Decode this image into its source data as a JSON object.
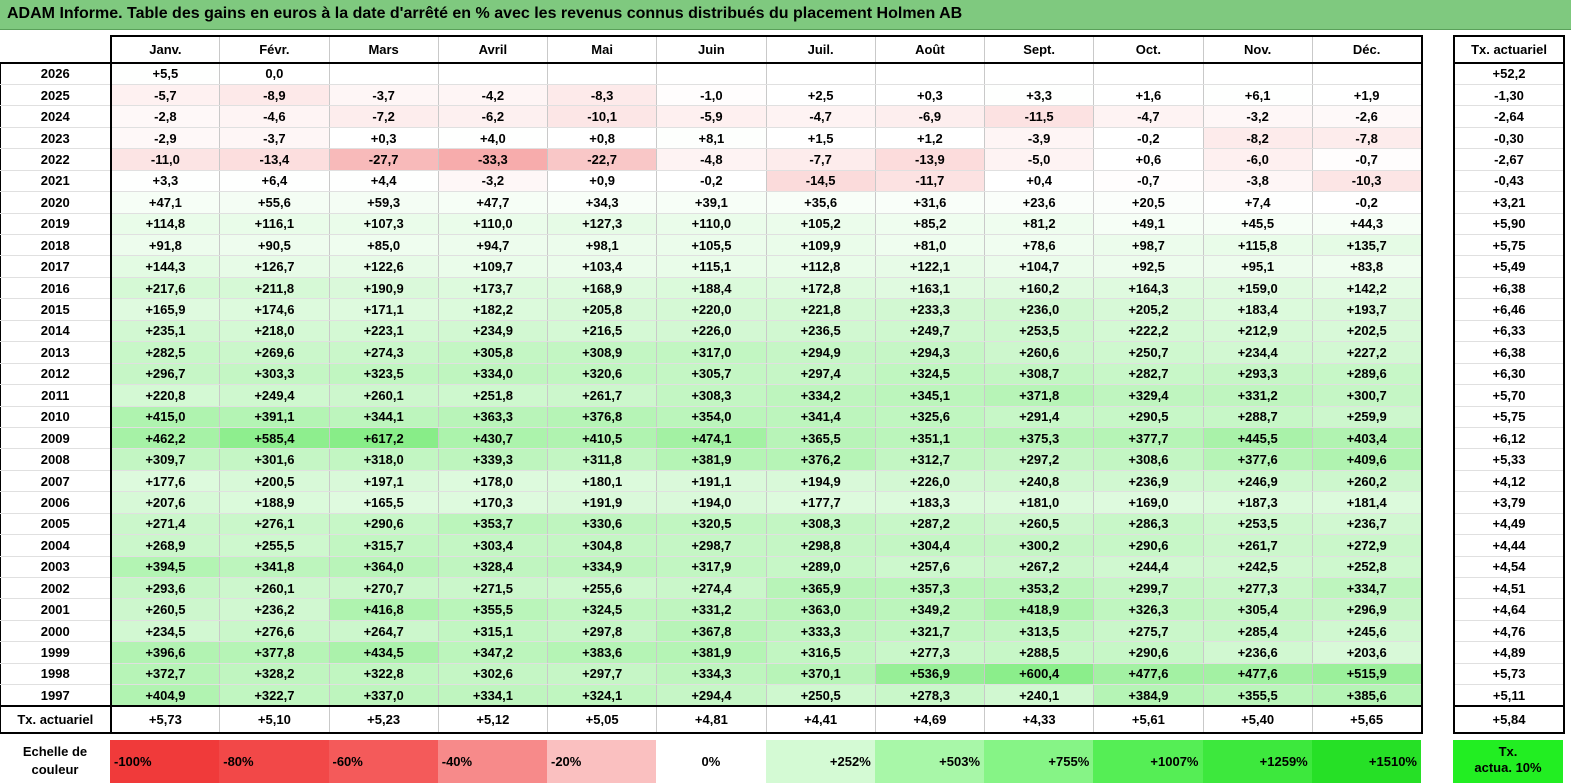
{
  "title": "ADAM Informe. Table des gains en euros à la date d'arrêté en % avec les revenus connus distribués du placement Holmen AB",
  "months": [
    "Janv.",
    "Févr.",
    "Mars",
    "Avril",
    "Mai",
    "Juin",
    "Juil.",
    "Août",
    "Sept.",
    "Oct.",
    "Nov.",
    "Déc."
  ],
  "actuarial_header": "Tx. actuariel",
  "rows": [
    {
      "year": "2026",
      "values": [
        "+5,5",
        "0,0",
        "",
        "",
        "",
        "",
        "",
        "",
        "",
        "",
        "",
        ""
      ],
      "act": "+52,2"
    },
    {
      "year": "2025",
      "values": [
        "-5,7",
        "-8,9",
        "-3,7",
        "-4,2",
        "-8,3",
        "-1,0",
        "+2,5",
        "+0,3",
        "+3,3",
        "+1,6",
        "+6,1",
        "+1,9"
      ],
      "act": "-1,30"
    },
    {
      "year": "2024",
      "values": [
        "-2,8",
        "-4,6",
        "-7,2",
        "-6,2",
        "-10,1",
        "-5,9",
        "-4,7",
        "-6,9",
        "-11,5",
        "-4,7",
        "-3,2",
        "-2,6"
      ],
      "act": "-2,64"
    },
    {
      "year": "2023",
      "values": [
        "-2,9",
        "-3,7",
        "+0,3",
        "+4,0",
        "+0,8",
        "+8,1",
        "+1,5",
        "+1,2",
        "-3,9",
        "-0,2",
        "-8,2",
        "-7,8"
      ],
      "act": "-0,30"
    },
    {
      "year": "2022",
      "values": [
        "-11,0",
        "-13,4",
        "-27,7",
        "-33,3",
        "-22,7",
        "-4,8",
        "-7,7",
        "-13,9",
        "-5,0",
        "+0,6",
        "-6,0",
        "-0,7"
      ],
      "act": "-2,67"
    },
    {
      "year": "2021",
      "values": [
        "+3,3",
        "+6,4",
        "+4,4",
        "-3,2",
        "+0,9",
        "-0,2",
        "-14,5",
        "-11,7",
        "+0,4",
        "-0,7",
        "-3,8",
        "-10,3"
      ],
      "act": "-0,43"
    },
    {
      "year": "2020",
      "values": [
        "+47,1",
        "+55,6",
        "+59,3",
        "+47,7",
        "+34,3",
        "+39,1",
        "+35,6",
        "+31,6",
        "+23,6",
        "+20,5",
        "+7,4",
        "-0,2"
      ],
      "act": "+3,21"
    },
    {
      "year": "2019",
      "values": [
        "+114,8",
        "+116,1",
        "+107,3",
        "+110,0",
        "+127,3",
        "+110,0",
        "+105,2",
        "+85,2",
        "+81,2",
        "+49,1",
        "+45,5",
        "+44,3"
      ],
      "act": "+5,90"
    },
    {
      "year": "2018",
      "values": [
        "+91,8",
        "+90,5",
        "+85,0",
        "+94,7",
        "+98,1",
        "+105,5",
        "+109,9",
        "+81,0",
        "+78,6",
        "+98,7",
        "+115,8",
        "+135,7"
      ],
      "act": "+5,75"
    },
    {
      "year": "2017",
      "values": [
        "+144,3",
        "+126,7",
        "+122,6",
        "+109,7",
        "+103,4",
        "+115,1",
        "+112,8",
        "+122,1",
        "+104,7",
        "+92,5",
        "+95,1",
        "+83,8"
      ],
      "act": "+5,49"
    },
    {
      "year": "2016",
      "values": [
        "+217,6",
        "+211,8",
        "+190,9",
        "+173,7",
        "+168,9",
        "+188,4",
        "+172,8",
        "+163,1",
        "+160,2",
        "+164,3",
        "+159,0",
        "+142,2"
      ],
      "act": "+6,38"
    },
    {
      "year": "2015",
      "values": [
        "+165,9",
        "+174,6",
        "+171,1",
        "+182,2",
        "+205,8",
        "+220,0",
        "+221,8",
        "+233,3",
        "+236,0",
        "+205,2",
        "+183,4",
        "+193,7"
      ],
      "act": "+6,46"
    },
    {
      "year": "2014",
      "values": [
        "+235,1",
        "+218,0",
        "+223,1",
        "+234,9",
        "+216,5",
        "+226,0",
        "+236,5",
        "+249,7",
        "+253,5",
        "+222,2",
        "+212,9",
        "+202,5"
      ],
      "act": "+6,33"
    },
    {
      "year": "2013",
      "values": [
        "+282,5",
        "+269,6",
        "+274,3",
        "+305,8",
        "+308,9",
        "+317,0",
        "+294,9",
        "+294,3",
        "+260,6",
        "+250,7",
        "+234,4",
        "+227,2"
      ],
      "act": "+6,38"
    },
    {
      "year": "2012",
      "values": [
        "+296,7",
        "+303,3",
        "+323,5",
        "+334,0",
        "+320,6",
        "+305,7",
        "+297,4",
        "+324,5",
        "+308,7",
        "+282,7",
        "+293,3",
        "+289,6"
      ],
      "act": "+6,30"
    },
    {
      "year": "2011",
      "values": [
        "+220,8",
        "+249,4",
        "+260,1",
        "+251,8",
        "+261,7",
        "+308,3",
        "+334,2",
        "+345,1",
        "+371,8",
        "+329,4",
        "+331,2",
        "+300,7"
      ],
      "act": "+5,70"
    },
    {
      "year": "2010",
      "values": [
        "+415,0",
        "+391,1",
        "+344,1",
        "+363,3",
        "+376,8",
        "+354,0",
        "+341,4",
        "+325,6",
        "+291,4",
        "+290,5",
        "+288,7",
        "+259,9"
      ],
      "act": "+5,75"
    },
    {
      "year": "2009",
      "values": [
        "+462,2",
        "+585,4",
        "+617,2",
        "+430,7",
        "+410,5",
        "+474,1",
        "+365,5",
        "+351,1",
        "+375,3",
        "+377,7",
        "+445,5",
        "+403,4"
      ],
      "act": "+6,12"
    },
    {
      "year": "2008",
      "values": [
        "+309,7",
        "+301,6",
        "+318,0",
        "+339,3",
        "+311,8",
        "+381,9",
        "+376,2",
        "+312,7",
        "+297,2",
        "+308,6",
        "+377,6",
        "+409,6"
      ],
      "act": "+5,33"
    },
    {
      "year": "2007",
      "values": [
        "+177,6",
        "+200,5",
        "+197,1",
        "+178,0",
        "+180,1",
        "+191,1",
        "+194,9",
        "+226,0",
        "+240,8",
        "+236,9",
        "+246,9",
        "+260,2"
      ],
      "act": "+4,12"
    },
    {
      "year": "2006",
      "values": [
        "+207,6",
        "+188,9",
        "+165,5",
        "+170,3",
        "+191,9",
        "+194,0",
        "+177,7",
        "+183,3",
        "+181,0",
        "+169,0",
        "+187,3",
        "+181,4"
      ],
      "act": "+3,79"
    },
    {
      "year": "2005",
      "values": [
        "+271,4",
        "+276,1",
        "+290,6",
        "+353,7",
        "+330,6",
        "+320,5",
        "+308,3",
        "+287,2",
        "+260,5",
        "+286,3",
        "+253,5",
        "+236,7"
      ],
      "act": "+4,49"
    },
    {
      "year": "2004",
      "values": [
        "+268,9",
        "+255,5",
        "+315,7",
        "+303,4",
        "+304,8",
        "+298,7",
        "+298,8",
        "+304,4",
        "+300,2",
        "+290,6",
        "+261,7",
        "+272,9"
      ],
      "act": "+4,44"
    },
    {
      "year": "2003",
      "values": [
        "+394,5",
        "+341,8",
        "+364,0",
        "+328,4",
        "+334,9",
        "+317,9",
        "+289,0",
        "+257,6",
        "+267,2",
        "+244,4",
        "+242,5",
        "+252,8"
      ],
      "act": "+4,54"
    },
    {
      "year": "2002",
      "values": [
        "+293,6",
        "+260,1",
        "+270,7",
        "+271,5",
        "+255,6",
        "+274,4",
        "+365,9",
        "+357,3",
        "+353,2",
        "+299,7",
        "+277,3",
        "+334,7"
      ],
      "act": "+4,51"
    },
    {
      "year": "2001",
      "values": [
        "+260,5",
        "+236,2",
        "+416,8",
        "+355,5",
        "+324,5",
        "+331,2",
        "+363,0",
        "+349,2",
        "+418,9",
        "+326,3",
        "+305,4",
        "+296,9"
      ],
      "act": "+4,64"
    },
    {
      "year": "2000",
      "values": [
        "+234,5",
        "+276,6",
        "+264,7",
        "+315,1",
        "+297,8",
        "+367,8",
        "+333,3",
        "+321,7",
        "+313,5",
        "+275,7",
        "+285,4",
        "+245,6"
      ],
      "act": "+4,76"
    },
    {
      "year": "1999",
      "values": [
        "+396,6",
        "+377,8",
        "+434,5",
        "+347,2",
        "+383,6",
        "+381,9",
        "+316,5",
        "+277,3",
        "+288,5",
        "+290,6",
        "+236,6",
        "+203,6"
      ],
      "act": "+4,89"
    },
    {
      "year": "1998",
      "values": [
        "+372,7",
        "+328,2",
        "+322,8",
        "+302,6",
        "+297,7",
        "+334,3",
        "+370,1",
        "+536,9",
        "+600,4",
        "+477,6",
        "+477,6",
        "+515,9"
      ],
      "act": "+5,73"
    },
    {
      "year": "1997",
      "values": [
        "+404,9",
        "+322,7",
        "+337,0",
        "+334,1",
        "+324,1",
        "+294,4",
        "+250,5",
        "+278,3",
        "+240,1",
        "+384,9",
        "+355,5",
        "+385,6"
      ],
      "act": "+5,11"
    }
  ],
  "totals": {
    "label": "Tx. actuariel",
    "values": [
      "+5,73",
      "+5,10",
      "+5,23",
      "+5,12",
      "+5,05",
      "+4,81",
      "+4,41",
      "+4,69",
      "+4,33",
      "+5,61",
      "+5,40",
      "+5,65"
    ],
    "act": "+5,84"
  },
  "scale": {
    "label_line1": "Echelle de",
    "label_line2": "couleur",
    "items": [
      {
        "label": "-100%",
        "color": "#f03a3a"
      },
      {
        "label": "-80%",
        "color": "#f24848"
      },
      {
        "label": "-60%",
        "color": "#f45a5a"
      },
      {
        "label": "-40%",
        "color": "#f78a8a"
      },
      {
        "label": "-20%",
        "color": "#fac0c0"
      },
      {
        "label": "0%",
        "color": "#ffffff"
      },
      {
        "label": "+252%",
        "color": "#d4fad4"
      },
      {
        "label": "+503%",
        "color": "#a8f7a8"
      },
      {
        "label": "+755%",
        "color": "#86f486"
      },
      {
        "label": "+1007%",
        "color": "#55ee55"
      },
      {
        "label": "+1259%",
        "color": "#3de83d"
      },
      {
        "label": "+1510%",
        "color": "#26e026"
      }
    ],
    "act_line1": "Tx.",
    "act_line2": "actua. 10%",
    "act_color": "#22ee22"
  },
  "colors": {
    "title_bg": "#7fc97f",
    "negative_max": "#f03a3a",
    "positive_max": "#22dd22"
  }
}
